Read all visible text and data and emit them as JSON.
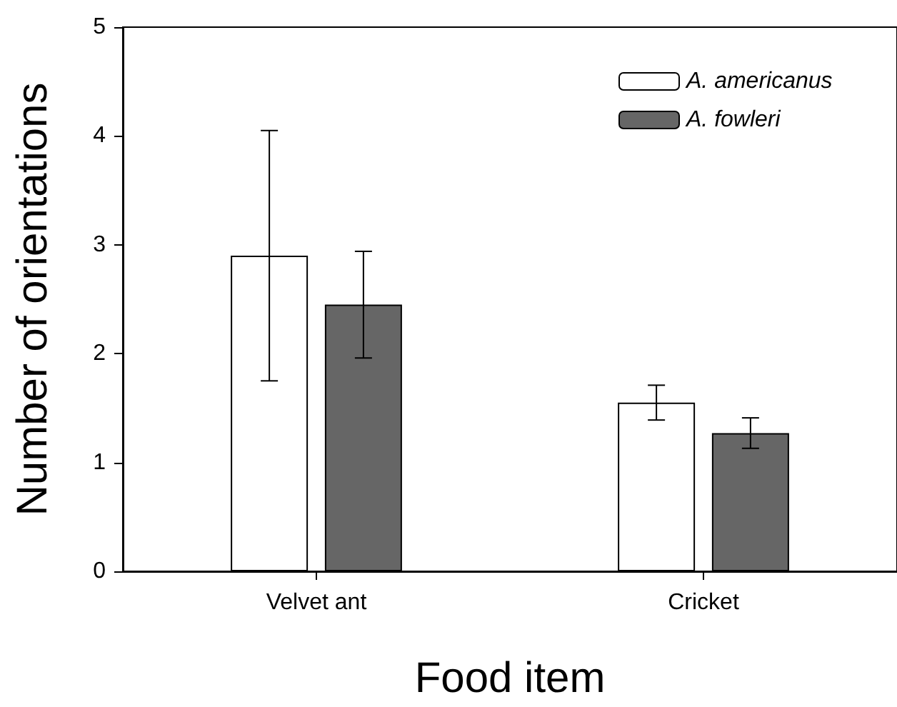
{
  "chart_data": {
    "type": "bar",
    "xlabel": "Food item",
    "ylabel": "Number of orientations",
    "categories": [
      "Velvet ant",
      "Cricket"
    ],
    "series": [
      {
        "name": "A. americanus",
        "color": "#ffffff",
        "values": [
          2.9,
          1.55
        ],
        "errors": [
          1.15,
          0.16
        ]
      },
      {
        "name": "A. fowleri",
        "color": "#666666",
        "values": [
          2.45,
          1.27
        ],
        "errors": [
          0.49,
          0.14
        ]
      }
    ],
    "ylim": [
      0,
      5
    ],
    "yticks": [
      0,
      1,
      2,
      3,
      4,
      5
    ],
    "legend": "top right"
  }
}
